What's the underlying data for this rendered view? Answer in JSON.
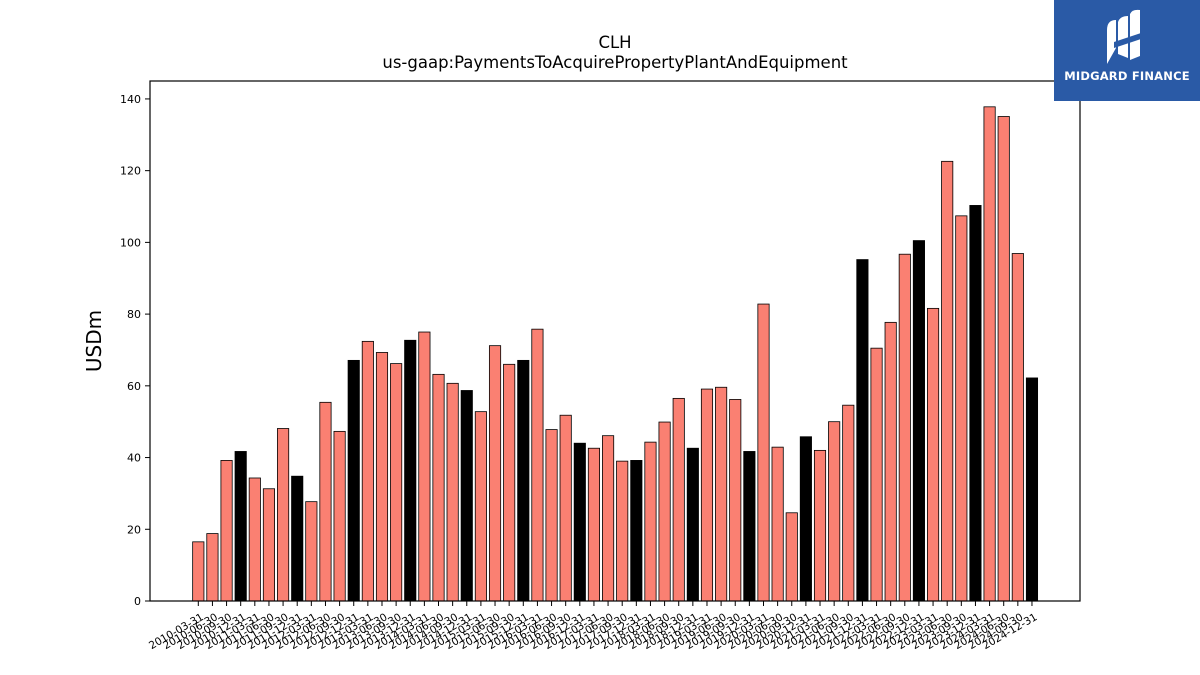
{
  "chart_data": {
    "type": "bar",
    "title": "CLH",
    "subtitle": "us-gaap:PaymentsToAcquirePropertyPlantAndEquipment",
    "ylabel": "USDm",
    "xlabel": "",
    "ylim": [
      0,
      145
    ],
    "yticks": [
      0,
      20,
      40,
      60,
      80,
      100,
      120,
      140
    ],
    "grid": false,
    "colors": {
      "quarter": "#fa8072",
      "year_end": "#000000"
    },
    "categories": [
      "2010-03-31",
      "2010-06-30",
      "2010-09-30",
      "2010-12-31",
      "2011-03-31",
      "2011-06-30",
      "2011-09-30",
      "2011-12-31",
      "2012-03-31",
      "2012-06-30",
      "2012-09-30",
      "2012-12-31",
      "2013-03-31",
      "2013-06-30",
      "2013-09-30",
      "2013-12-31",
      "2014-03-31",
      "2014-06-30",
      "2014-09-30",
      "2014-12-31",
      "2015-03-31",
      "2015-06-30",
      "2015-09-30",
      "2015-12-31",
      "2016-03-31",
      "2016-06-30",
      "2016-09-30",
      "2016-12-31",
      "2017-03-31",
      "2017-06-30",
      "2017-09-30",
      "2017-12-31",
      "2018-03-31",
      "2018-06-30",
      "2018-09-30",
      "2018-12-31",
      "2019-03-31",
      "2019-06-30",
      "2019-09-30",
      "2019-12-31",
      "2020-03-31",
      "2020-06-30",
      "2020-09-30",
      "2020-12-31",
      "2021-03-31",
      "2021-06-30",
      "2021-09-30",
      "2021-12-31",
      "2022-03-31",
      "2022-06-30",
      "2022-09-30",
      "2022-12-31",
      "2023-03-31",
      "2023-06-30",
      "2023-09-30",
      "2023-12-31",
      "2024-03-31",
      "2024-06-30",
      "2024-09-30",
      "2024-12-31"
    ],
    "values": [
      16.5,
      18.8,
      39.2,
      41.7,
      34.3,
      31.3,
      48.1,
      34.8,
      27.7,
      55.4,
      47.3,
      67.1,
      72.4,
      69.3,
      66.2,
      72.7,
      75.0,
      63.2,
      60.7,
      58.7,
      52.8,
      71.2,
      66.0,
      67.1,
      75.8,
      47.8,
      51.8,
      44.0,
      42.6,
      46.1,
      39.0,
      39.2,
      44.3,
      49.9,
      56.5,
      42.6,
      59.1,
      59.6,
      56.2,
      41.7,
      82.8,
      42.9,
      24.6,
      45.8,
      42.0,
      50.0,
      54.6,
      95.2,
      70.5,
      77.7,
      96.7,
      100.5,
      81.6,
      122.6,
      107.4,
      110.3,
      137.8,
      135.1,
      96.9,
      62.2
    ],
    "year_end_flags": [
      0,
      0,
      0,
      1,
      0,
      0,
      0,
      1,
      0,
      0,
      0,
      1,
      0,
      0,
      0,
      1,
      0,
      0,
      0,
      1,
      0,
      0,
      0,
      1,
      0,
      0,
      0,
      1,
      0,
      0,
      0,
      1,
      0,
      0,
      0,
      1,
      0,
      0,
      0,
      1,
      0,
      0,
      0,
      1,
      0,
      0,
      0,
      1,
      0,
      0,
      0,
      1,
      0,
      0,
      0,
      1,
      0,
      0,
      0,
      1
    ]
  },
  "logo": {
    "text": "MIDGARD FINANCE"
  }
}
